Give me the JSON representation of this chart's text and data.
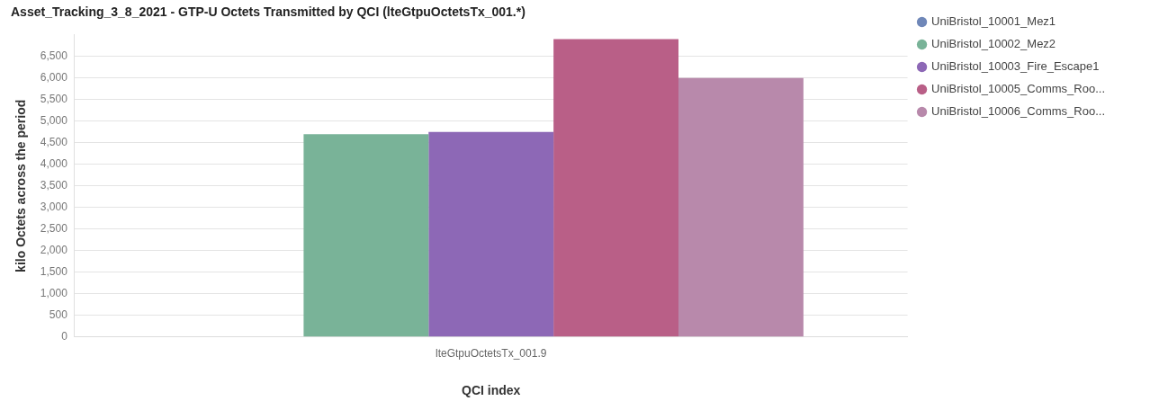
{
  "chart_data": {
    "type": "bar",
    "title": "Asset_Tracking_3_8_2021 - GTP-U Octets Transmitted by QCI (lteGtpuOctetsTx_001.*)",
    "xlabel": "QCI index",
    "ylabel": "kilo Octets across the period",
    "categories": [
      "lteGtpuOctetsTx_001.9"
    ],
    "series": [
      {
        "name": "UniBristol_10001_Mez1",
        "color": "#6f87b8",
        "values": [
          0
        ]
      },
      {
        "name": "UniBristol_10002_Mez2",
        "color": "#79b398",
        "values": [
          4700
        ]
      },
      {
        "name": "UniBristol_10003_Fire_Escape1",
        "color": "#8d68b6",
        "values": [
          4750
        ]
      },
      {
        "name": "UniBristol_10005_Comms_Roo...",
        "color": "#b95f87",
        "values": [
          6900
        ]
      },
      {
        "name": "UniBristol_10006_Comms_Roo...",
        "color": "#b889ab",
        "values": [
          6000
        ]
      }
    ],
    "ylim": [
      0,
      7000
    ],
    "yticks": [
      {
        "value": 0,
        "label": "0"
      },
      {
        "value": 500,
        "label": "500"
      },
      {
        "value": 1000,
        "label": "1,000"
      },
      {
        "value": 1500,
        "label": "1,500"
      },
      {
        "value": 2000,
        "label": "2,000"
      },
      {
        "value": 2500,
        "label": "2,500"
      },
      {
        "value": 3000,
        "label": "3,000"
      },
      {
        "value": 3500,
        "label": "3,500"
      },
      {
        "value": 4000,
        "label": "4,000"
      },
      {
        "value": 4500,
        "label": "4,500"
      },
      {
        "value": 5000,
        "label": "5,000"
      },
      {
        "value": 5500,
        "label": "5,500"
      },
      {
        "value": 6000,
        "label": "6,000"
      },
      {
        "value": 6500,
        "label": "6,500"
      }
    ],
    "grid": "y",
    "legend": "right"
  }
}
